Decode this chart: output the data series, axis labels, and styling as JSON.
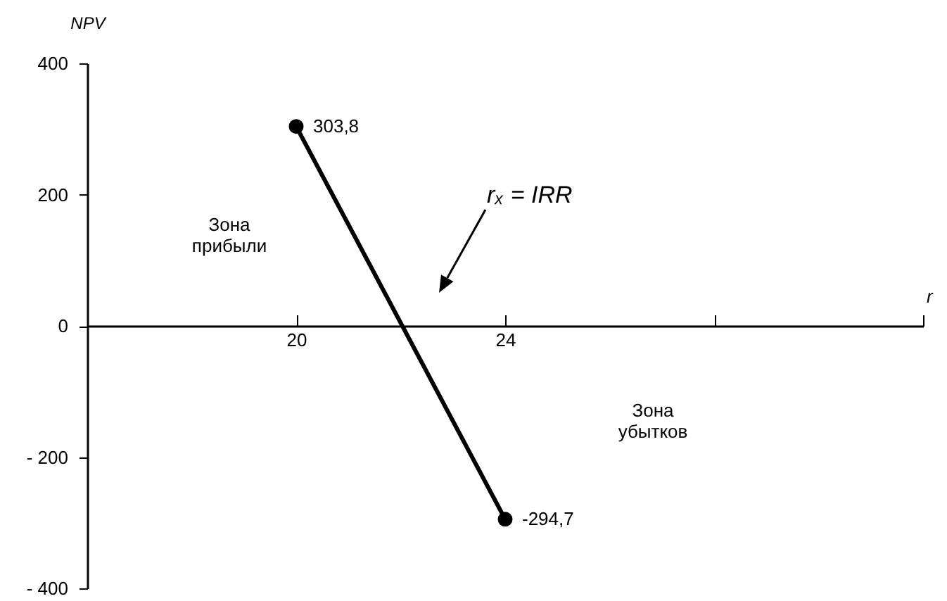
{
  "chart_data": {
    "type": "line",
    "x": [
      20,
      24
    ],
    "series": [
      {
        "color": "#000000",
        "values": [
          303.8,
          -294.7
        ],
        "value_labels": [
          "303,8",
          "-294,7"
        ]
      }
    ],
    "xlabel": "r",
    "ylabel": "NPV",
    "xlim": [
      16,
      32
    ],
    "xticks": [
      20,
      24,
      {
        "value": 28,
        "label": null
      },
      {
        "value": 32,
        "label": null
      }
    ],
    "ylim": [
      -400,
      400
    ],
    "yticks": [
      {
        "value": -400,
        "label": "- 400"
      },
      {
        "value": -200,
        "label": "- 200"
      },
      0,
      200,
      400
    ],
    "marker": "circle",
    "line_style": "solid",
    "grid": false,
    "annotations": [
      "Зона\nприбыли",
      "Зона\nубытков",
      "rₓ = IRR"
    ]
  }
}
